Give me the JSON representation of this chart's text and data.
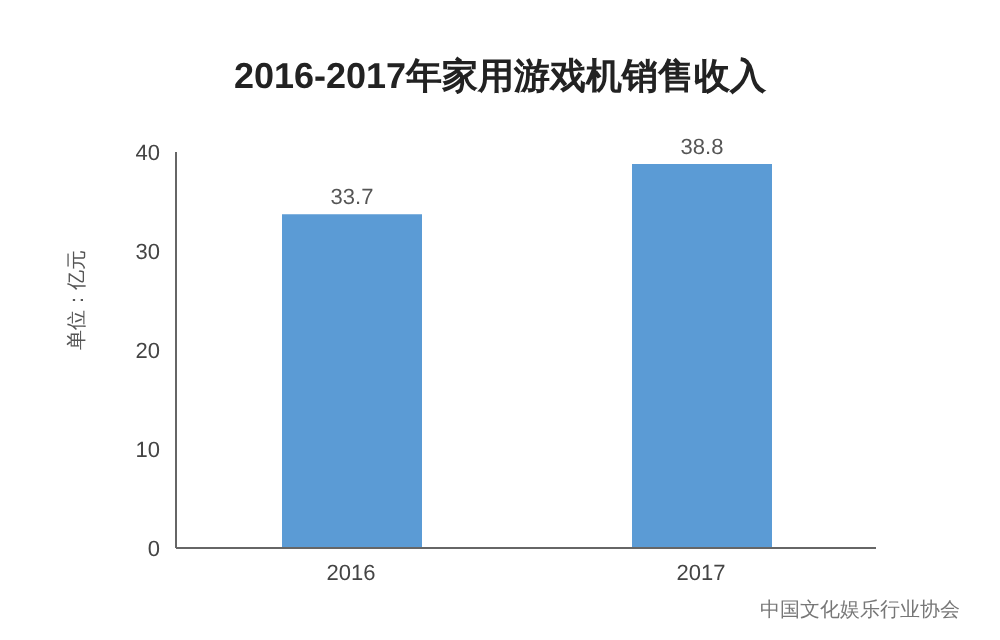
{
  "chart_data": {
    "type": "bar",
    "title": "2016-2017年家用游戏机销售收入",
    "ylabel": "单位：亿元",
    "categories": [
      "2016",
      "2017"
    ],
    "values": [
      33.7,
      38.8
    ],
    "color": "#5b9bd5",
    "ylim": [
      0,
      40
    ],
    "yticks": [
      0,
      10,
      20,
      30,
      40
    ],
    "data_labels": true,
    "annotations": [
      "中国文化娱乐行业协会"
    ]
  }
}
